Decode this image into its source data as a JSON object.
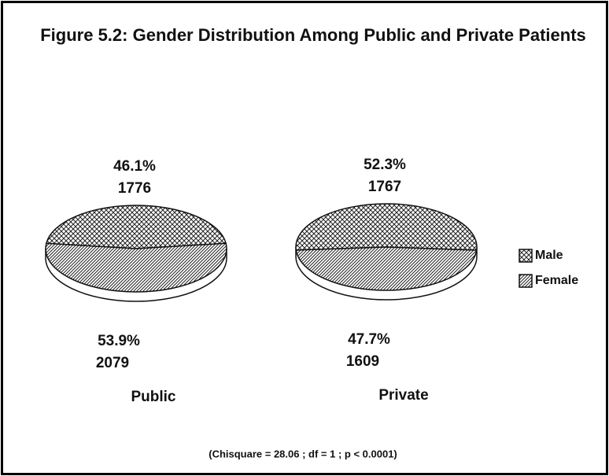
{
  "chart_data": {
    "type": "pie",
    "title": "Figure 5.2: Gender Distribution Among Public and Private Patients",
    "note": "(Chisquare = 28.06 ; df = 1 ; p < 0.0001)",
    "categories": [
      "Male",
      "Female"
    ],
    "patterns": [
      "crosshatch",
      "diagonal"
    ],
    "legend": "right",
    "series": [
      {
        "name": "Public",
        "values": [
          46.1,
          53.9
        ],
        "value_labels": [
          "46.1%",
          "53.9%"
        ],
        "counts": [
          1776,
          2079
        ]
      },
      {
        "name": "Private",
        "values": [
          52.3,
          47.7
        ],
        "value_labels": [
          "52.3%",
          "47.7%"
        ],
        "counts": [
          1767,
          1609
        ]
      }
    ]
  }
}
